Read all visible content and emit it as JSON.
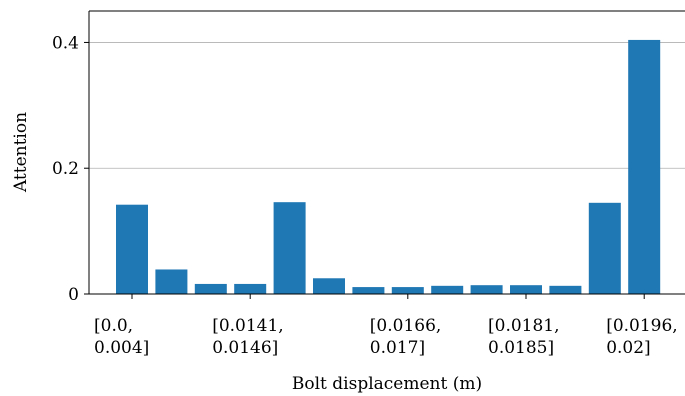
{
  "chart_data": {
    "type": "bar",
    "xlabel": "Bolt displacement (m)",
    "ylabel": "Attention",
    "ylim": [
      0,
      0.45
    ],
    "yticks": [
      {
        "value": 0,
        "label": "0"
      },
      {
        "value": 0.2,
        "label": "0.2"
      },
      {
        "value": 0.4,
        "label": "0.4"
      }
    ],
    "grid": "horizontal",
    "bar_color": "#1f77b4",
    "values": [
      0.142,
      0.039,
      0.016,
      0.016,
      0.146,
      0.025,
      0.011,
      0.011,
      0.013,
      0.014,
      0.014,
      0.013,
      0.145,
      0.404
    ],
    "xtick_labels": [
      {
        "bar": 0,
        "lines": [
          "[0.0,",
          "0.004]"
        ]
      },
      {
        "bar": 3,
        "lines": [
          "[0.0141,",
          "0.0146]"
        ]
      },
      {
        "bar": 7,
        "lines": [
          "[0.0166,",
          "0.017]"
        ]
      },
      {
        "bar": 10,
        "lines": [
          "[0.0181,",
          "0.0185]"
        ]
      },
      {
        "bar": 13,
        "lines": [
          "[0.0196,",
          "0.02]"
        ]
      }
    ]
  }
}
